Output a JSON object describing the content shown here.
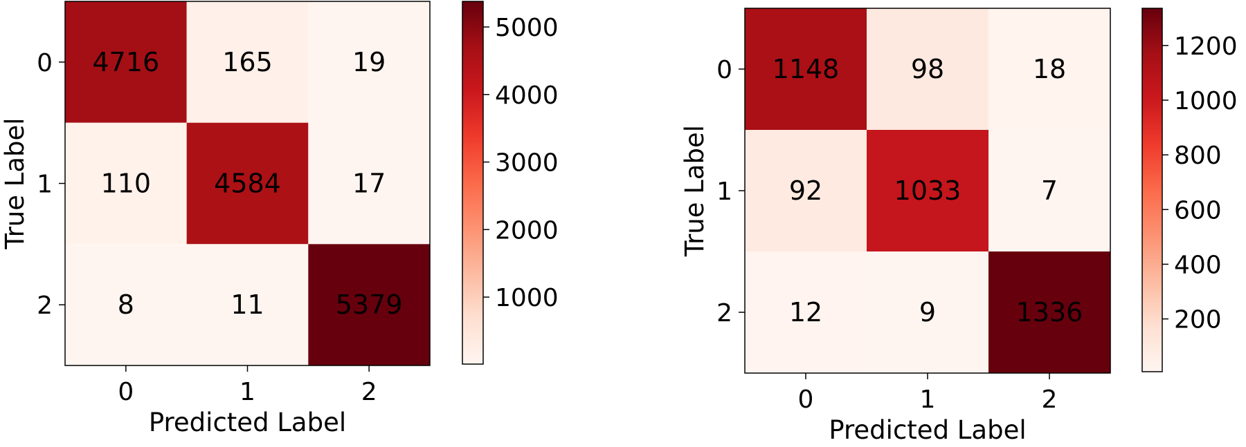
{
  "chart_data": [
    {
      "type": "heatmap",
      "title": "",
      "xlabel": "Predicted Label",
      "ylabel": "True Label",
      "x_categories": [
        "0",
        "1",
        "2"
      ],
      "y_categories": [
        "0",
        "1",
        "2"
      ],
      "values": [
        [
          4716,
          165,
          19
        ],
        [
          110,
          4584,
          17
        ],
        [
          8,
          11,
          5379
        ]
      ],
      "colormap": "Reds",
      "colorbar": {
        "range": [
          8,
          5379
        ],
        "ticks": [
          1000,
          2000,
          3000,
          4000,
          5000
        ],
        "tick_labels": [
          "1000",
          "2000",
          "3000",
          "4000",
          "5000"
        ]
      }
    },
    {
      "type": "heatmap",
      "title": "",
      "xlabel": "Predicted Label",
      "ylabel": "True Label",
      "x_categories": [
        "0",
        "1",
        "2"
      ],
      "y_categories": [
        "0",
        "1",
        "2"
      ],
      "values": [
        [
          1148,
          98,
          18
        ],
        [
          92,
          1033,
          7
        ],
        [
          12,
          9,
          1336
        ]
      ],
      "colormap": "Reds",
      "colorbar": {
        "range": [
          7,
          1336
        ],
        "ticks": [
          200,
          400,
          600,
          800,
          1000,
          1200
        ],
        "tick_labels": [
          "200",
          "400",
          "600",
          "800",
          "1000",
          "1200"
        ]
      }
    }
  ]
}
